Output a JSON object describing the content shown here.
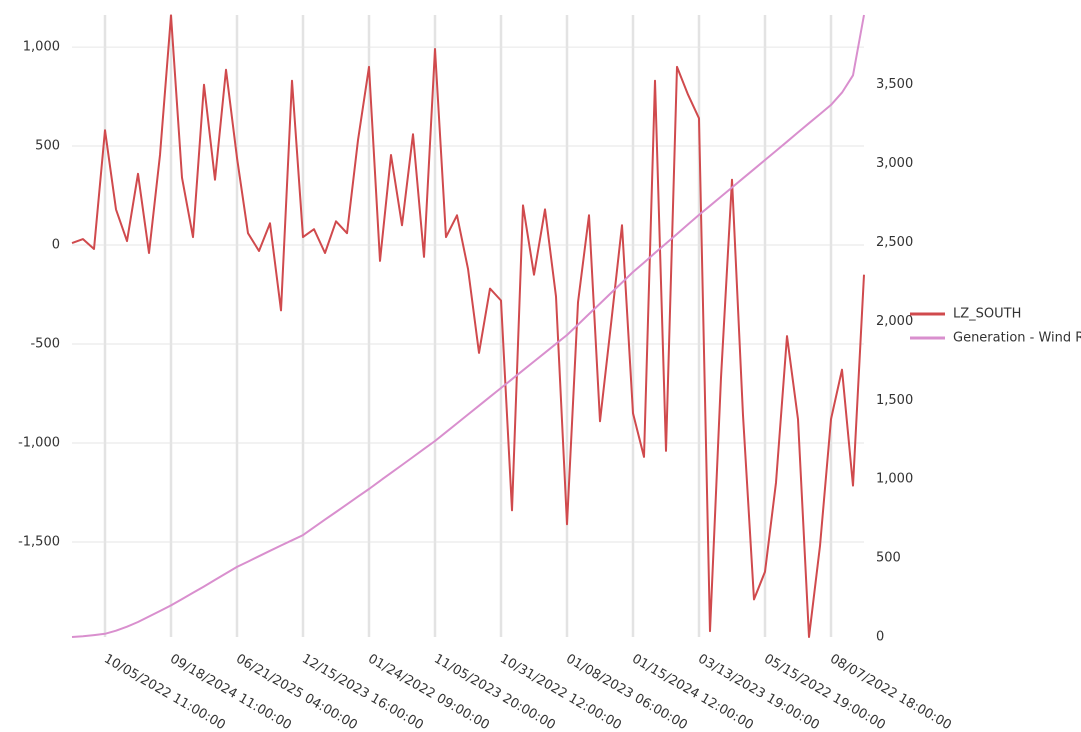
{
  "chart_data": {
    "type": "line",
    "categories": [
      null,
      null,
      null,
      "10/05/2022 11:00:00",
      null,
      null,
      null,
      null,
      null,
      "09/18/2024 11:00:00",
      null,
      null,
      null,
      null,
      null,
      "06/21/2025 04:00:00",
      null,
      null,
      null,
      null,
      null,
      "12/15/2023 16:00:00",
      null,
      null,
      null,
      null,
      null,
      "01/24/2022 09:00:00",
      null,
      null,
      null,
      null,
      null,
      "11/05/2023 20:00:00",
      null,
      null,
      null,
      null,
      null,
      "10/31/2022 12:00:00",
      null,
      null,
      null,
      null,
      null,
      "01/08/2023 06:00:00",
      null,
      null,
      null,
      null,
      null,
      "01/15/2024 12:00:00",
      null,
      null,
      null,
      null,
      null,
      "03/13/2023 19:00:00",
      null,
      null,
      null,
      null,
      null,
      "05/15/2022 19:00:00",
      null,
      null,
      null,
      null,
      null,
      "08/07/2022 18:00:00",
      null,
      null,
      null
    ],
    "series": [
      {
        "name": "LZ_SOUTH",
        "color": "#d04a4d",
        "values": [
          10,
          30,
          -20,
          580,
          180,
          20,
          360,
          -40,
          455,
          1160,
          340,
          40,
          810,
          330,
          885,
          440,
          60,
          -30,
          110,
          -330,
          830,
          40,
          80,
          -40,
          120,
          60,
          530,
          900,
          -80,
          455,
          100,
          560,
          -60,
          990,
          40,
          150,
          -120,
          -545,
          -220,
          -280,
          -1340,
          200,
          -150,
          180,
          -260,
          -1410,
          -290,
          150,
          -890,
          -400,
          100,
          -850,
          -1070,
          830,
          -1040,
          900,
          760,
          640,
          -1950,
          -670,
          330,
          -860,
          -1790,
          -1650,
          -1200,
          -460,
          -880,
          -1980,
          -1520,
          -880,
          -630,
          -1215,
          -150
        ]
      },
      {
        "name": "Generation - Wind RT",
        "color": "#d98fce",
        "axis": "y2",
        "values": [
          0,
          5,
          12,
          20,
          40,
          65,
          95,
          130,
          165,
          200,
          240,
          280,
          320,
          362,
          403,
          444,
          478,
          512,
          546,
          580,
          613,
          646,
          695,
          744,
          792,
          841,
          890,
          938,
          989,
          1040,
          1090,
          1141,
          1192,
          1242,
          1298,
          1354,
          1410,
          1466,
          1522,
          1578,
          1634,
          1690,
          1746,
          1802,
          1858,
          1914,
          1980,
          2047,
          2113,
          2180,
          2246,
          2313,
          2373,
          2434,
          2494,
          2554,
          2615,
          2675,
          2733,
          2791,
          2849,
          2907,
          2965,
          3023,
          3081,
          3139,
          3198,
          3256,
          3314,
          3372,
          3450,
          3560,
          3942
        ]
      }
    ],
    "ylim": [
      -1980,
      1162
    ],
    "yticks": [
      {
        "value": -1500,
        "label": "-1,500"
      },
      {
        "value": -1000,
        "label": "-1,000"
      },
      -500,
      0,
      500,
      {
        "value": 1000,
        "label": "1,000"
      }
    ],
    "y2lim": [
      0,
      3942
    ],
    "y2ticks": [
      0,
      500,
      {
        "value": 1000,
        "label": "1,000"
      },
      {
        "value": 1500,
        "label": "1,500"
      },
      {
        "value": 2000,
        "label": "2,000"
      },
      {
        "value": 2500,
        "label": "2,500"
      },
      {
        "value": 3000,
        "label": "3,000"
      },
      {
        "value": 3500,
        "label": "3,500"
      }
    ],
    "grid": true,
    "legend": "right"
  }
}
